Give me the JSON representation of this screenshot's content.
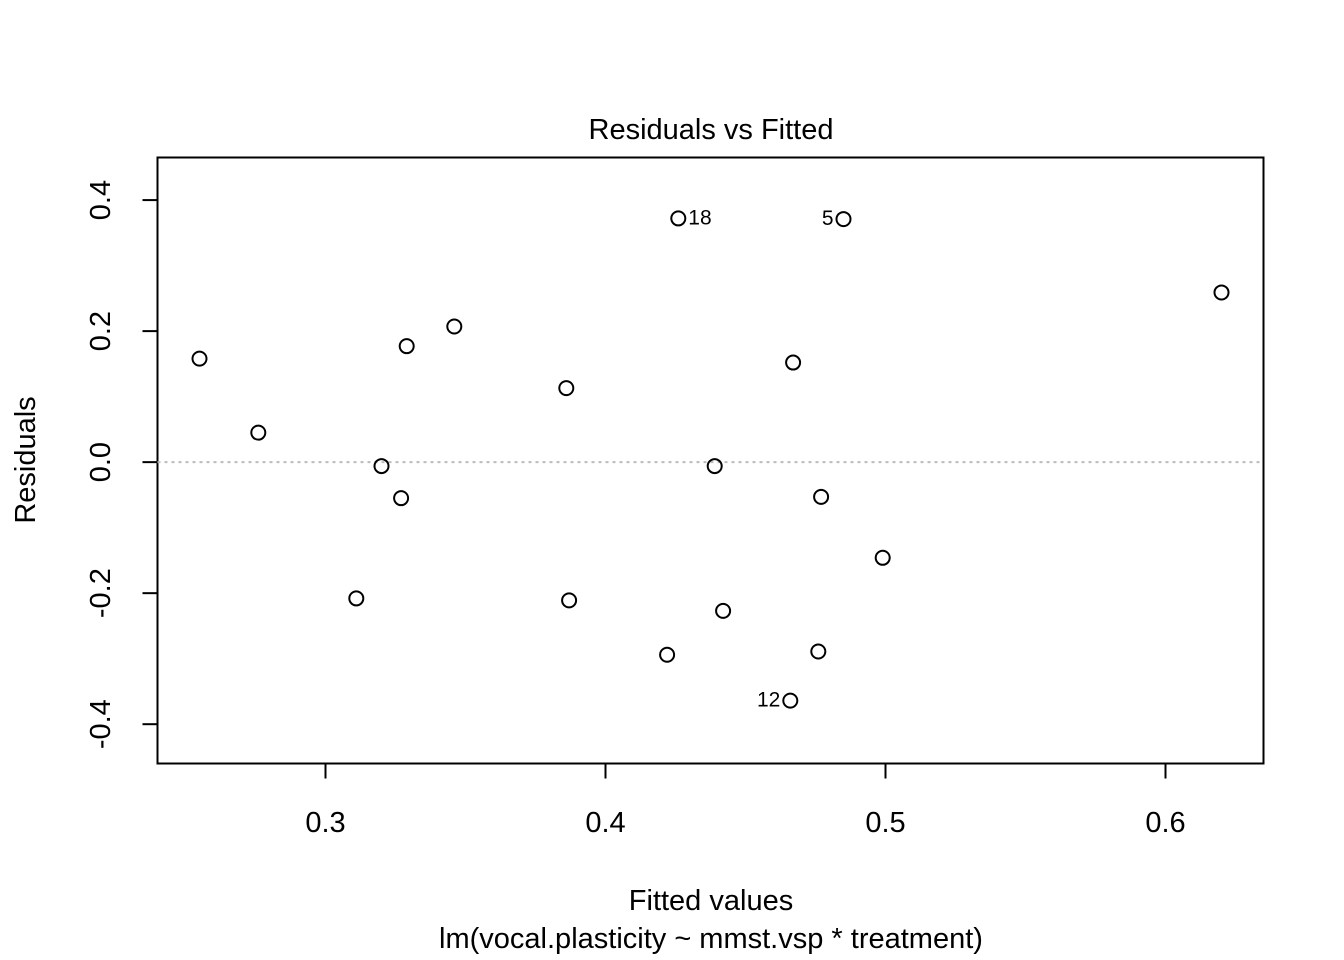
{
  "chart_data": {
    "type": "scatter",
    "title": "Residuals vs Fitted",
    "xlabel": "Fitted values",
    "xlabel_sub": "lm(vocal.plasticity ~ mmst.vsp * treatment)",
    "ylabel": "Residuals",
    "xlim": [
      0.24,
      0.635
    ],
    "ylim": [
      -0.46,
      0.465
    ],
    "xticks": [
      0.3,
      0.4,
      0.5,
      0.6
    ],
    "xtick_labels": [
      "0.3",
      "0.4",
      "0.5",
      "0.6"
    ],
    "yticks": [
      -0.4,
      -0.2,
      0.0,
      0.2,
      0.4
    ],
    "ytick_labels": [
      "-0.4",
      "-0.2",
      "0.0",
      "0.2",
      "0.4"
    ],
    "reference_line": {
      "y": 0.0,
      "style": "dotted",
      "color": "#bbbbbb"
    },
    "grid": false,
    "legend": "none",
    "marker": "open-circle",
    "points": [
      {
        "x": 0.255,
        "y": 0.158
      },
      {
        "x": 0.276,
        "y": 0.045
      },
      {
        "x": 0.311,
        "y": -0.208
      },
      {
        "x": 0.32,
        "y": -0.006
      },
      {
        "x": 0.327,
        "y": -0.055
      },
      {
        "x": 0.329,
        "y": 0.177
      },
      {
        "x": 0.346,
        "y": 0.207
      },
      {
        "x": 0.386,
        "y": 0.113
      },
      {
        "x": 0.387,
        "y": -0.211
      },
      {
        "x": 0.422,
        "y": -0.294
      },
      {
        "x": 0.426,
        "y": 0.372,
        "label": "18"
      },
      {
        "x": 0.439,
        "y": -0.006
      },
      {
        "x": 0.442,
        "y": -0.227
      },
      {
        "x": 0.466,
        "y": -0.364,
        "label": "12"
      },
      {
        "x": 0.467,
        "y": 0.152
      },
      {
        "x": 0.476,
        "y": -0.289
      },
      {
        "x": 0.477,
        "y": -0.053
      },
      {
        "x": 0.485,
        "y": 0.371,
        "label": "5"
      },
      {
        "x": 0.499,
        "y": -0.146
      },
      {
        "x": 0.62,
        "y": 0.259
      }
    ]
  }
}
